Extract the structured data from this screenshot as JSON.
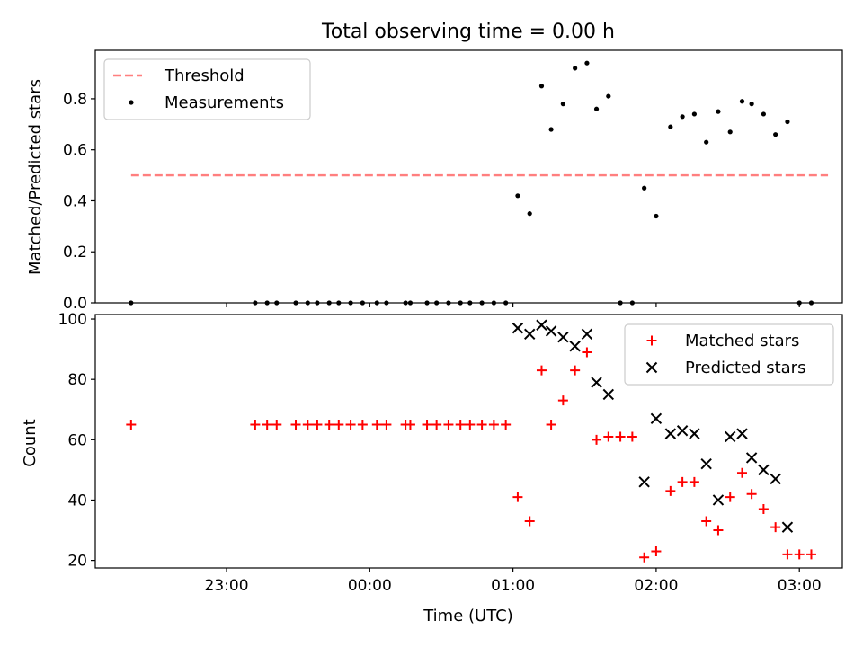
{
  "chart_data": [
    {
      "type": "scatter",
      "title": "Total observing time = 0.00 h",
      "xlabel": "",
      "ylabel": "Matched/Predicted stars",
      "xlim": [
        "22:05",
        "03:18"
      ],
      "ylim": [
        0,
        0.99
      ],
      "yticks": [
        "0.0",
        "0.2",
        "0.4",
        "0.6",
        "0.8"
      ],
      "grid": false,
      "legend_position": "upper-left",
      "series": [
        {
          "name": "Threshold",
          "kind": "dashed-line",
          "color": "#ff7f7f",
          "x": [
            "22:20",
            "03:12"
          ],
          "y": [
            0.5,
            0.5
          ]
        },
        {
          "name": "Measurements",
          "kind": "points",
          "color": "#000000",
          "points": [
            [
              "22:20",
              0.0
            ],
            [
              "23:12",
              0.0
            ],
            [
              "23:17",
              0.0
            ],
            [
              "23:21",
              0.0
            ],
            [
              "23:29",
              0.0
            ],
            [
              "23:34",
              0.0
            ],
            [
              "23:38",
              0.0
            ],
            [
              "23:43",
              0.0
            ],
            [
              "23:47",
              0.0
            ],
            [
              "23:52",
              0.0
            ],
            [
              "23:57",
              0.0
            ],
            [
              "00:03",
              0.0
            ],
            [
              "00:07",
              0.0
            ],
            [
              "00:15",
              0.0
            ],
            [
              "00:17",
              0.0
            ],
            [
              "00:24",
              0.0
            ],
            [
              "00:28",
              0.0
            ],
            [
              "00:33",
              0.0
            ],
            [
              "00:38",
              0.0
            ],
            [
              "00:42",
              0.0
            ],
            [
              "00:47",
              0.0
            ],
            [
              "00:52",
              0.0
            ],
            [
              "00:57",
              0.0
            ],
            [
              "01:02",
              0.42
            ],
            [
              "01:07",
              0.35
            ],
            [
              "01:12",
              0.85
            ],
            [
              "01:16",
              0.68
            ],
            [
              "01:21",
              0.78
            ],
            [
              "01:26",
              0.92
            ],
            [
              "01:31",
              0.94
            ],
            [
              "01:35",
              0.76
            ],
            [
              "01:40",
              0.81
            ],
            [
              "01:45",
              0.0
            ],
            [
              "01:50",
              0.0
            ],
            [
              "01:55",
              0.45
            ],
            [
              "02:00",
              0.34
            ],
            [
              "02:06",
              0.69
            ],
            [
              "02:11",
              0.73
            ],
            [
              "02:16",
              0.74
            ],
            [
              "02:21",
              0.63
            ],
            [
              "02:26",
              0.75
            ],
            [
              "02:31",
              0.67
            ],
            [
              "02:36",
              0.79
            ],
            [
              "02:40",
              0.78
            ],
            [
              "02:45",
              0.74
            ],
            [
              "02:50",
              0.66
            ],
            [
              "02:55",
              0.71
            ],
            [
              "03:00",
              0.0
            ],
            [
              "03:05",
              0.0
            ]
          ]
        }
      ]
    },
    {
      "type": "scatter",
      "title": "",
      "xlabel": "Time (UTC)",
      "ylabel": "Count",
      "xlim": [
        "22:05",
        "03:18"
      ],
      "ylim": [
        17.5,
        101.5
      ],
      "xticks": [
        "23:00",
        "00:00",
        "01:00",
        "02:00",
        "03:00"
      ],
      "yticks": [
        "20",
        "40",
        "60",
        "80",
        "100"
      ],
      "grid": false,
      "legend_position": "upper-right",
      "series": [
        {
          "name": "Matched stars",
          "kind": "plus",
          "color": "#ff0000",
          "points": [
            [
              "22:20",
              65
            ],
            [
              "23:12",
              65
            ],
            [
              "23:17",
              65
            ],
            [
              "23:21",
              65
            ],
            [
              "23:29",
              65
            ],
            [
              "23:34",
              65
            ],
            [
              "23:38",
              65
            ],
            [
              "23:43",
              65
            ],
            [
              "23:47",
              65
            ],
            [
              "23:52",
              65
            ],
            [
              "23:57",
              65
            ],
            [
              "00:03",
              65
            ],
            [
              "00:07",
              65
            ],
            [
              "00:15",
              65
            ],
            [
              "00:17",
              65
            ],
            [
              "00:24",
              65
            ],
            [
              "00:28",
              65
            ],
            [
              "00:33",
              65
            ],
            [
              "00:38",
              65
            ],
            [
              "00:42",
              65
            ],
            [
              "00:47",
              65
            ],
            [
              "00:52",
              65
            ],
            [
              "00:57",
              65
            ],
            [
              "01:02",
              41
            ],
            [
              "01:07",
              33
            ],
            [
              "01:12",
              83
            ],
            [
              "01:16",
              65
            ],
            [
              "01:21",
              73
            ],
            [
              "01:26",
              83
            ],
            [
              "01:31",
              89
            ],
            [
              "01:35",
              60
            ],
            [
              "01:40",
              61
            ],
            [
              "01:45",
              61
            ],
            [
              "01:50",
              61
            ],
            [
              "01:55",
              21
            ],
            [
              "02:00",
              23
            ],
            [
              "02:06",
              43
            ],
            [
              "02:11",
              46
            ],
            [
              "02:16",
              46
            ],
            [
              "02:21",
              33
            ],
            [
              "02:26",
              30
            ],
            [
              "02:31",
              41
            ],
            [
              "02:36",
              49
            ],
            [
              "02:40",
              42
            ],
            [
              "02:45",
              37
            ],
            [
              "02:50",
              31
            ],
            [
              "02:55",
              22
            ],
            [
              "03:00",
              22
            ],
            [
              "03:05",
              22
            ]
          ]
        },
        {
          "name": "Predicted stars",
          "kind": "cross",
          "color": "#000000",
          "points": [
            [
              "01:02",
              97
            ],
            [
              "01:07",
              95
            ],
            [
              "01:12",
              98
            ],
            [
              "01:16",
              96
            ],
            [
              "01:21",
              94
            ],
            [
              "01:26",
              91
            ],
            [
              "01:31",
              95
            ],
            [
              "01:35",
              79
            ],
            [
              "01:40",
              75
            ],
            [
              "01:55",
              46
            ],
            [
              "02:00",
              67
            ],
            [
              "02:06",
              62
            ],
            [
              "02:11",
              63
            ],
            [
              "02:16",
              62
            ],
            [
              "02:21",
              52
            ],
            [
              "02:26",
              40
            ],
            [
              "02:31",
              61
            ],
            [
              "02:36",
              62
            ],
            [
              "02:40",
              54
            ],
            [
              "02:45",
              50
            ],
            [
              "02:50",
              47
            ],
            [
              "02:55",
              31
            ]
          ]
        }
      ]
    }
  ]
}
